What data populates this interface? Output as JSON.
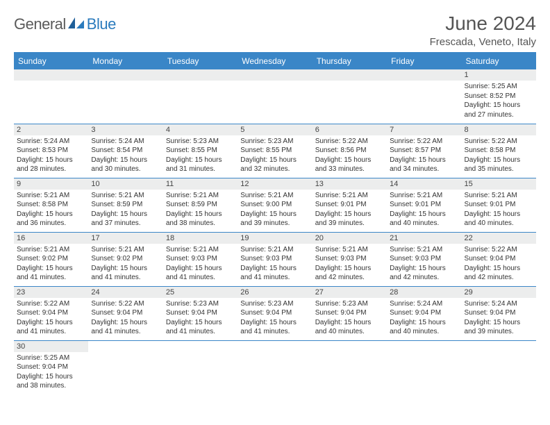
{
  "logo": {
    "text1": "General",
    "text2": "Blue"
  },
  "title": "June 2024",
  "subtitle": "Frescada, Veneto, Italy",
  "colors": {
    "header_bg": "#3a86c7",
    "header_text": "#ffffff",
    "daynum_bg": "#eceded",
    "border": "#3a86c7",
    "title_color": "#555555",
    "logo_gray": "#5a5a5a",
    "logo_blue": "#2b7bbd"
  },
  "weekdays": [
    "Sunday",
    "Monday",
    "Tuesday",
    "Wednesday",
    "Thursday",
    "Friday",
    "Saturday"
  ],
  "weeks": [
    [
      null,
      null,
      null,
      null,
      null,
      null,
      {
        "n": "1",
        "sr": "5:25 AM",
        "ss": "8:52 PM",
        "dl": "15 hours and 27 minutes."
      }
    ],
    [
      {
        "n": "2",
        "sr": "5:24 AM",
        "ss": "8:53 PM",
        "dl": "15 hours and 28 minutes."
      },
      {
        "n": "3",
        "sr": "5:24 AM",
        "ss": "8:54 PM",
        "dl": "15 hours and 30 minutes."
      },
      {
        "n": "4",
        "sr": "5:23 AM",
        "ss": "8:55 PM",
        "dl": "15 hours and 31 minutes."
      },
      {
        "n": "5",
        "sr": "5:23 AM",
        "ss": "8:55 PM",
        "dl": "15 hours and 32 minutes."
      },
      {
        "n": "6",
        "sr": "5:22 AM",
        "ss": "8:56 PM",
        "dl": "15 hours and 33 minutes."
      },
      {
        "n": "7",
        "sr": "5:22 AM",
        "ss": "8:57 PM",
        "dl": "15 hours and 34 minutes."
      },
      {
        "n": "8",
        "sr": "5:22 AM",
        "ss": "8:58 PM",
        "dl": "15 hours and 35 minutes."
      }
    ],
    [
      {
        "n": "9",
        "sr": "5:21 AM",
        "ss": "8:58 PM",
        "dl": "15 hours and 36 minutes."
      },
      {
        "n": "10",
        "sr": "5:21 AM",
        "ss": "8:59 PM",
        "dl": "15 hours and 37 minutes."
      },
      {
        "n": "11",
        "sr": "5:21 AM",
        "ss": "8:59 PM",
        "dl": "15 hours and 38 minutes."
      },
      {
        "n": "12",
        "sr": "5:21 AM",
        "ss": "9:00 PM",
        "dl": "15 hours and 39 minutes."
      },
      {
        "n": "13",
        "sr": "5:21 AM",
        "ss": "9:01 PM",
        "dl": "15 hours and 39 minutes."
      },
      {
        "n": "14",
        "sr": "5:21 AM",
        "ss": "9:01 PM",
        "dl": "15 hours and 40 minutes."
      },
      {
        "n": "15",
        "sr": "5:21 AM",
        "ss": "9:01 PM",
        "dl": "15 hours and 40 minutes."
      }
    ],
    [
      {
        "n": "16",
        "sr": "5:21 AM",
        "ss": "9:02 PM",
        "dl": "15 hours and 41 minutes."
      },
      {
        "n": "17",
        "sr": "5:21 AM",
        "ss": "9:02 PM",
        "dl": "15 hours and 41 minutes."
      },
      {
        "n": "18",
        "sr": "5:21 AM",
        "ss": "9:03 PM",
        "dl": "15 hours and 41 minutes."
      },
      {
        "n": "19",
        "sr": "5:21 AM",
        "ss": "9:03 PM",
        "dl": "15 hours and 41 minutes."
      },
      {
        "n": "20",
        "sr": "5:21 AM",
        "ss": "9:03 PM",
        "dl": "15 hours and 42 minutes."
      },
      {
        "n": "21",
        "sr": "5:21 AM",
        "ss": "9:03 PM",
        "dl": "15 hours and 42 minutes."
      },
      {
        "n": "22",
        "sr": "5:22 AM",
        "ss": "9:04 PM",
        "dl": "15 hours and 42 minutes."
      }
    ],
    [
      {
        "n": "23",
        "sr": "5:22 AM",
        "ss": "9:04 PM",
        "dl": "15 hours and 41 minutes."
      },
      {
        "n": "24",
        "sr": "5:22 AM",
        "ss": "9:04 PM",
        "dl": "15 hours and 41 minutes."
      },
      {
        "n": "25",
        "sr": "5:23 AM",
        "ss": "9:04 PM",
        "dl": "15 hours and 41 minutes."
      },
      {
        "n": "26",
        "sr": "5:23 AM",
        "ss": "9:04 PM",
        "dl": "15 hours and 41 minutes."
      },
      {
        "n": "27",
        "sr": "5:23 AM",
        "ss": "9:04 PM",
        "dl": "15 hours and 40 minutes."
      },
      {
        "n": "28",
        "sr": "5:24 AM",
        "ss": "9:04 PM",
        "dl": "15 hours and 40 minutes."
      },
      {
        "n": "29",
        "sr": "5:24 AM",
        "ss": "9:04 PM",
        "dl": "15 hours and 39 minutes."
      }
    ],
    [
      {
        "n": "30",
        "sr": "5:25 AM",
        "ss": "9:04 PM",
        "dl": "15 hours and 38 minutes."
      },
      null,
      null,
      null,
      null,
      null,
      null
    ]
  ],
  "labels": {
    "sunrise": "Sunrise:",
    "sunset": "Sunset:",
    "daylight": "Daylight:"
  }
}
